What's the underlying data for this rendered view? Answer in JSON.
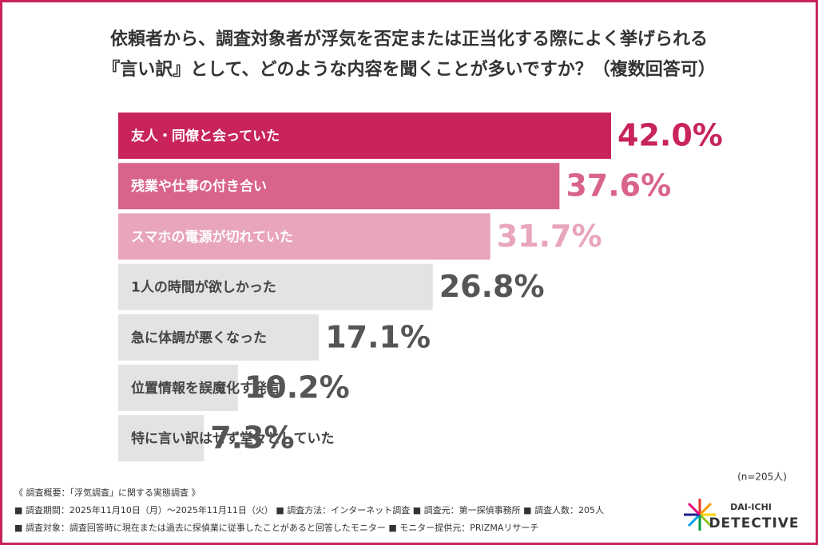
{
  "chart_data": {
    "type": "bar",
    "orientation": "horizontal",
    "title": [
      "依頼者から、調査対象者が浮気を否定または正当化する際によく挙げられる",
      "『言い訳』として、どのような内容を聞くことが多いですか？（複数回答可）"
    ],
    "categories": [
      "友人・同僚と会っていた",
      "残業や仕事の付き合い",
      "スマホの電源が切れていた",
      "1人の時間が欲しかった",
      "急に体調が悪くなった",
      "位置情報を誤魔化す発言",
      "特に言い訳はせず堂々としていた"
    ],
    "values": [
      42.0,
      37.6,
      31.7,
      26.8,
      17.1,
      10.2,
      7.3
    ],
    "value_labels": [
      "42.0%",
      "37.6%",
      "31.7%",
      "26.8%",
      "17.1%",
      "10.2%",
      "7.3%"
    ],
    "colors": [
      "#c8245a",
      "#d9648b",
      "#e8a5bc",
      "#e3e3e3",
      "#e3e3e3",
      "#e3e3e3",
      "#e3e3e3"
    ],
    "label_text_colors": [
      "#ffffff",
      "#ffffff",
      "#ffffff",
      "#444444",
      "#444444",
      "#444444",
      "#444444"
    ],
    "value_label_colors": [
      "#c8245a",
      "#d9648b",
      "#e8a5bc",
      "#555555",
      "#555555",
      "#555555",
      "#555555"
    ]
  },
  "footer": {
    "sample": "(n=205人)",
    "notes": [
      "《 調査概要：「浮気調査」に関する実態調査 》",
      "■ 調査期間：2025年11月10日（月）～2025年11月11日（火） ■ 調査方法：インターネット調査 ■ 調査元：第一探偵事務所 ■ 調査人数：205人",
      "■ 調査対象：調査回答時に現在または過去に探偵業に従事したことがあると回答したモニター ■ モニター提供元：PRIZMAリサーチ"
    ],
    "logo": [
      "DAI-ICHI",
      "DETECTIVE"
    ]
  }
}
